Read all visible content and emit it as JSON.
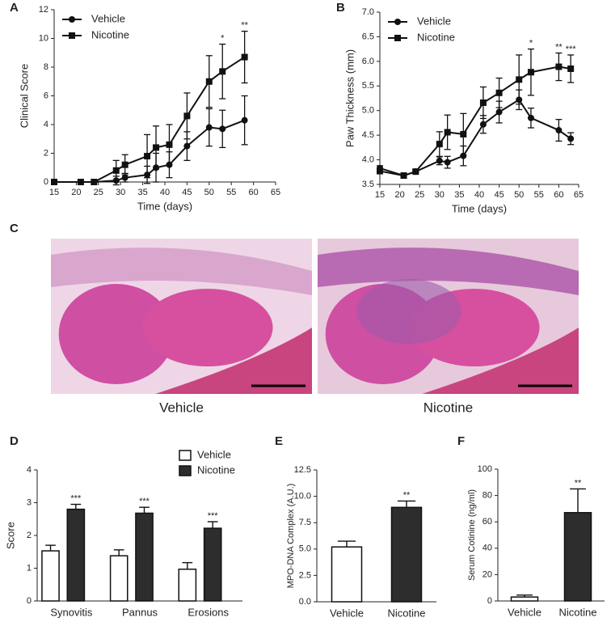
{
  "chart_data": [
    {
      "type": "line",
      "panel": "A",
      "ylabel": "Clinical Score",
      "xlabel": "Time (days)",
      "xlim": [
        15,
        65
      ],
      "xticks": [
        15,
        20,
        25,
        30,
        35,
        40,
        45,
        50,
        55,
        60,
        65
      ],
      "ylim": [
        0,
        12
      ],
      "yticks": [
        0,
        2,
        4,
        6,
        8,
        10,
        12
      ],
      "legend": "upper left",
      "series": [
        {
          "name": "Vehicle",
          "color": "#111111",
          "marker": "circle",
          "x": [
            15,
            21,
            24,
            29,
            31,
            36,
            38,
            41,
            45,
            50,
            53,
            58
          ],
          "values": [
            0,
            0,
            0,
            0.1,
            0.3,
            0.5,
            1.0,
            1.2,
            2.5,
            3.8,
            3.7,
            4.3
          ],
          "errors": [
            0,
            0,
            0,
            0.3,
            0.3,
            0.6,
            1.0,
            0.9,
            1.0,
            1.3,
            1.3,
            1.7
          ]
        },
        {
          "name": "Nicotine",
          "color": "#111111",
          "marker": "square",
          "x": [
            15,
            21,
            24,
            29,
            31,
            36,
            38,
            41,
            45,
            50,
            53,
            58
          ],
          "values": [
            0,
            0,
            0,
            0.8,
            1.2,
            1.8,
            2.4,
            2.6,
            4.6,
            7.0,
            7.7,
            8.7
          ],
          "errors": [
            0,
            0,
            0,
            0.7,
            0.7,
            1.5,
            1.5,
            1.4,
            1.6,
            1.8,
            1.9,
            1.8
          ],
          "significance": [
            null,
            null,
            null,
            null,
            null,
            null,
            null,
            null,
            null,
            null,
            "*",
            "**"
          ]
        }
      ]
    },
    {
      "type": "line",
      "panel": "B",
      "ylabel": "Paw Thickness (mm)",
      "xlabel": "Time (days)",
      "xlim": [
        15,
        65
      ],
      "xticks": [
        15,
        20,
        25,
        30,
        35,
        40,
        45,
        50,
        55,
        60,
        65
      ],
      "ylim": [
        3.5,
        7.0
      ],
      "yticks": [
        {
          "value": 3.5,
          "label": "3.5"
        },
        {
          "value": 4,
          "label": "4.0"
        },
        {
          "value": 4.5,
          "label": "4.5"
        },
        {
          "value": 5,
          "label": "5.0"
        },
        {
          "value": 5.5,
          "label": "5.5"
        },
        {
          "value": 6,
          "label": "6.0"
        },
        {
          "value": 6.5,
          "label": "6.5"
        },
        {
          "value": 7,
          "label": "7.0"
        }
      ],
      "legend": "upper left",
      "series": [
        {
          "name": "Vehicle",
          "color": "#111111",
          "marker": "circle",
          "x": [
            15,
            21,
            24,
            30,
            32,
            36,
            41,
            45,
            50,
            53,
            60,
            63
          ],
          "values": [
            3.83,
            3.68,
            3.76,
            3.98,
            3.95,
            4.08,
            4.72,
            4.97,
            5.22,
            4.85,
            4.6,
            4.43
          ],
          "errors": [
            0.05,
            0.03,
            0.03,
            0.08,
            0.12,
            0.2,
            0.18,
            0.22,
            0.2,
            0.2,
            0.22,
            0.12
          ]
        },
        {
          "name": "Nicotine",
          "color": "#111111",
          "marker": "square",
          "x": [
            15,
            21,
            24,
            30,
            32,
            36,
            41,
            45,
            50,
            53,
            60,
            63
          ],
          "values": [
            3.77,
            3.68,
            3.76,
            4.32,
            4.56,
            4.52,
            5.16,
            5.36,
            5.63,
            5.78,
            5.89,
            5.85
          ],
          "errors": [
            0.05,
            0.03,
            0.03,
            0.25,
            0.35,
            0.42,
            0.32,
            0.3,
            0.5,
            0.47,
            0.28,
            0.28
          ],
          "significance": [
            null,
            null,
            null,
            null,
            null,
            null,
            null,
            null,
            null,
            "*",
            "**",
            "***"
          ]
        }
      ]
    },
    {
      "type": "image",
      "panel": "C",
      "captions": [
        "Vehicle",
        "Nicotine"
      ]
    },
    {
      "type": "bar",
      "panel": "D",
      "ylabel": "Score",
      "categories": [
        "Synovitis",
        "Pannus",
        "Erosions"
      ],
      "ylim": [
        0,
        4
      ],
      "yticks": [
        0,
        1,
        2,
        3,
        4
      ],
      "legend": "upper right",
      "series": [
        {
          "name": "Vehicle",
          "color": "#ffffff",
          "values": [
            1.53,
            1.38,
            0.97
          ],
          "errors": [
            0.17,
            0.18,
            0.2
          ]
        },
        {
          "name": "Nicotine",
          "color": "#2d2d2d",
          "values": [
            2.8,
            2.68,
            2.22
          ],
          "errors": [
            0.15,
            0.18,
            0.2
          ],
          "significance": [
            "***",
            "***",
            "***"
          ]
        }
      ]
    },
    {
      "type": "bar",
      "panel": "E",
      "ylabel": "MPO-DNA Complex (A.U.)",
      "categories": [
        "Vehicle",
        "Nicotine"
      ],
      "ylim": [
        0,
        12.5
      ],
      "yticks": [
        {
          "value": 0,
          "label": "0.0"
        },
        {
          "value": 2.5,
          "label": "2.5"
        },
        {
          "value": 5,
          "label": "5.0"
        },
        {
          "value": 7.5,
          "label": "7.5"
        },
        {
          "value": 10,
          "label": "10.0"
        },
        {
          "value": 12.5,
          "label": "12.5"
        }
      ],
      "colors": [
        "#ffffff",
        "#2d2d2d"
      ],
      "values": [
        5.2,
        8.95
      ],
      "errors": [
        0.55,
        0.6
      ],
      "significance": [
        null,
        "**"
      ]
    },
    {
      "type": "bar",
      "panel": "F",
      "ylabel": "Serum Cotinine (ng/ml)",
      "categories": [
        "Vehicle",
        "Nicotine"
      ],
      "ylim": [
        0,
        100
      ],
      "yticks": [
        0,
        20,
        40,
        60,
        80,
        100
      ],
      "colors": [
        "#ffffff",
        "#2d2d2d"
      ],
      "values": [
        3,
        67
      ],
      "errors": [
        1.5,
        18
      ],
      "significance": [
        null,
        "**"
      ]
    }
  ]
}
